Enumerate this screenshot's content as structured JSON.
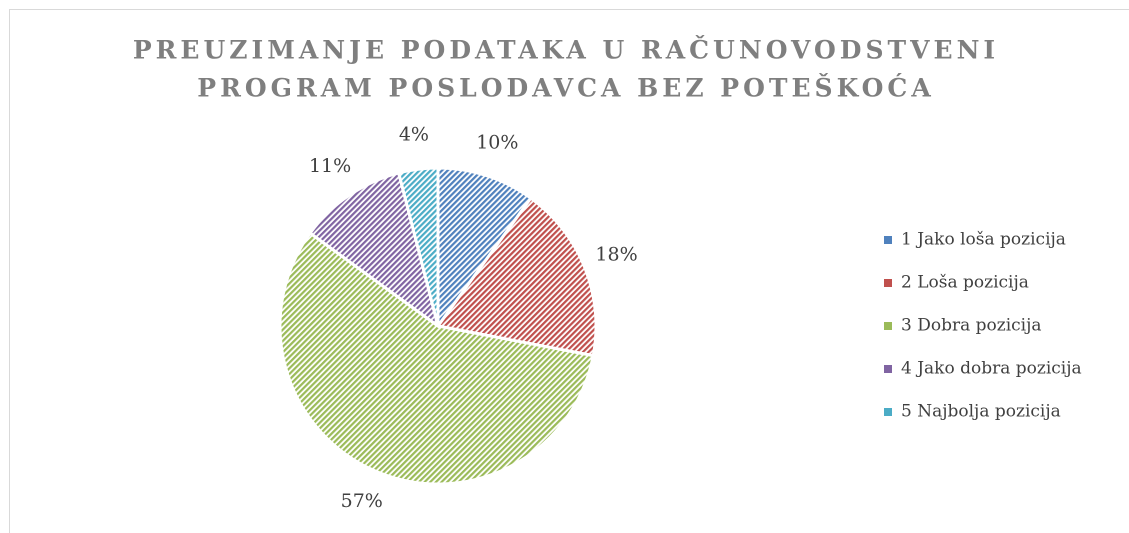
{
  "chart_data": {
    "type": "pie",
    "title": [
      "PREUZIMANJE PODATAKA U RAČUNOVODSTVENI",
      "PROGRAM POSLODAVCA BEZ POTEŠKOĆA"
    ],
    "categories": [
      "1 Jako loša pozicija",
      "2 Loša pozicija",
      "3 Dobra pozicija",
      "4 Jako dobra pozicija",
      "5 Najbolja pozicija"
    ],
    "values": [
      10,
      18,
      57,
      11,
      4
    ],
    "value_labels": [
      "10%",
      "18%",
      "57%",
      "11%",
      "4%"
    ],
    "colors": [
      "#4f81bd",
      "#c0504d",
      "#9bbb59",
      "#8064a2",
      "#4bacc6"
    ],
    "legend": "right"
  }
}
